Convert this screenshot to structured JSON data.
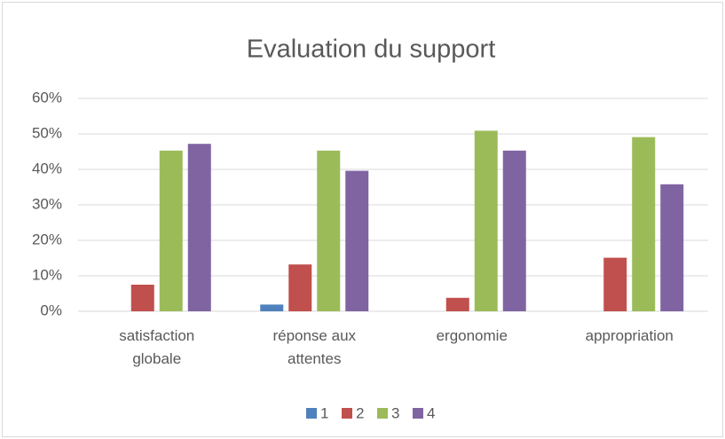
{
  "chart_data": {
    "type": "bar",
    "title": "Evaluation du support",
    "categories": [
      "satisfaction globale",
      "réponse aux attentes",
      "ergonomie",
      "appropriation"
    ],
    "series": [
      {
        "name": "1",
        "color": "#4f81bd",
        "values": [
          0,
          1.9,
          0,
          0
        ]
      },
      {
        "name": "2",
        "color": "#c0504d",
        "values": [
          7.5,
          13.2,
          3.8,
          15.1
        ]
      },
      {
        "name": "3",
        "color": "#9bbb59",
        "values": [
          45.3,
          45.3,
          50.9,
          49.1
        ]
      },
      {
        "name": "4",
        "color": "#8064a2",
        "values": [
          47.2,
          39.6,
          45.3,
          35.8
        ]
      }
    ],
    "ylim": [
      0,
      60
    ],
    "yticks": [
      {
        "value": 0,
        "label": "0%"
      },
      {
        "value": 10,
        "label": "10%"
      },
      {
        "value": 20,
        "label": "20%"
      },
      {
        "value": 30,
        "label": "30%"
      },
      {
        "value": 40,
        "label": "40%"
      },
      {
        "value": 50,
        "label": "50%"
      },
      {
        "value": 60,
        "label": "60%"
      }
    ],
    "grid": true,
    "legend": "bottom"
  }
}
